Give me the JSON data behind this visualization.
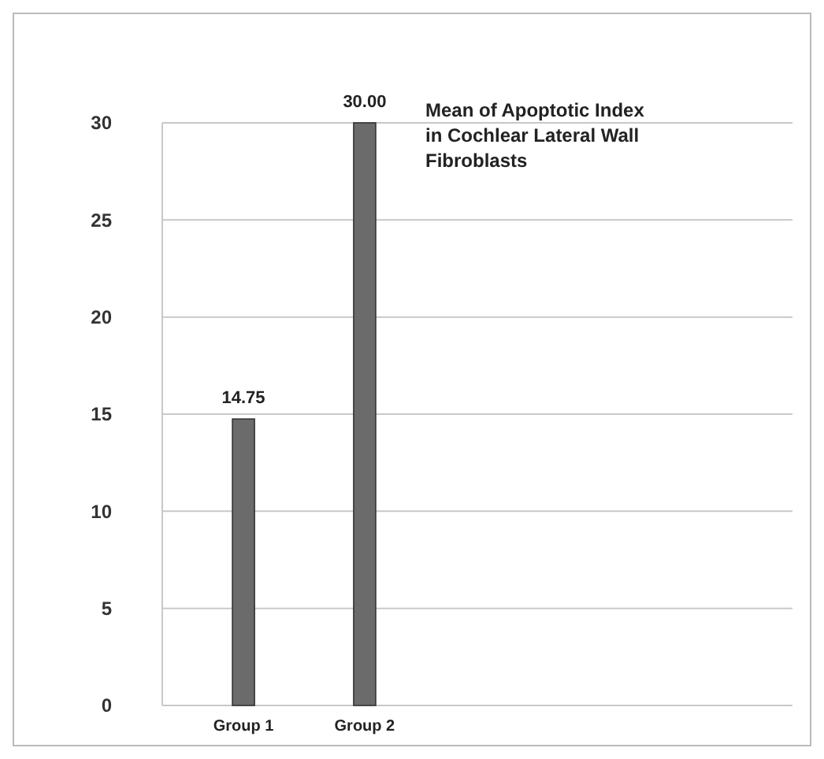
{
  "chart_data": {
    "type": "bar",
    "title": "Mean of Apoptotic Index in Cochlear Lateral Wall Fibroblasts",
    "categories": [
      "Group 1",
      "Group 2"
    ],
    "values": [
      14.75,
      30
    ],
    "value_labels": [
      "14.75",
      "30.00"
    ],
    "color": "#6b6b6b",
    "ylim": [
      0,
      30
    ],
    "yticks": [
      0,
      5,
      10,
      15,
      20,
      25,
      30
    ],
    "grid": "y"
  }
}
